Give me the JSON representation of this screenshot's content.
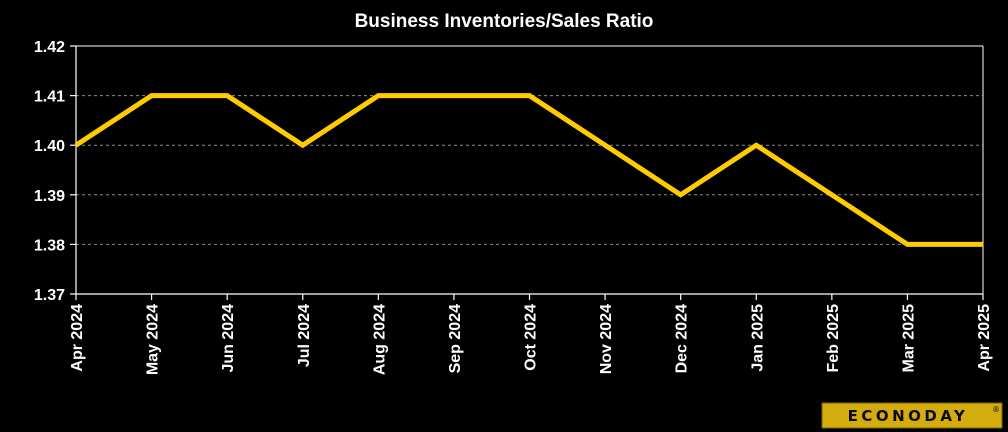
{
  "chart_data": {
    "type": "line",
    "title": "Business Inventories/Sales  Ratio",
    "xlabel": "",
    "ylabel": "",
    "categories": [
      "Apr 2024",
      "May 2024",
      "Jun 2024",
      "Jul 2024",
      "Aug 2024",
      "Sep 2024",
      "Oct 2024",
      "Nov 2024",
      "Dec 2024",
      "Jan 2025",
      "Feb 2025",
      "Mar 2025",
      "Apr 2025"
    ],
    "series": [
      {
        "values": [
          1.4,
          1.41,
          1.41,
          1.4,
          1.41,
          1.41,
          1.41,
          1.4,
          1.39,
          1.4,
          1.39,
          1.38,
          1.38
        ]
      }
    ],
    "ylim": [
      1.37,
      1.42
    ],
    "yticks": [
      1.37,
      1.38,
      1.39,
      1.4,
      1.41,
      1.42
    ],
    "ytick_decimals": 2,
    "grid": "horizontal dashed",
    "legend": "none",
    "line_color": "#ffcc00",
    "background": "#000000"
  },
  "branding": {
    "logo_text": "ECONODAY",
    "logo_mark": "®"
  }
}
